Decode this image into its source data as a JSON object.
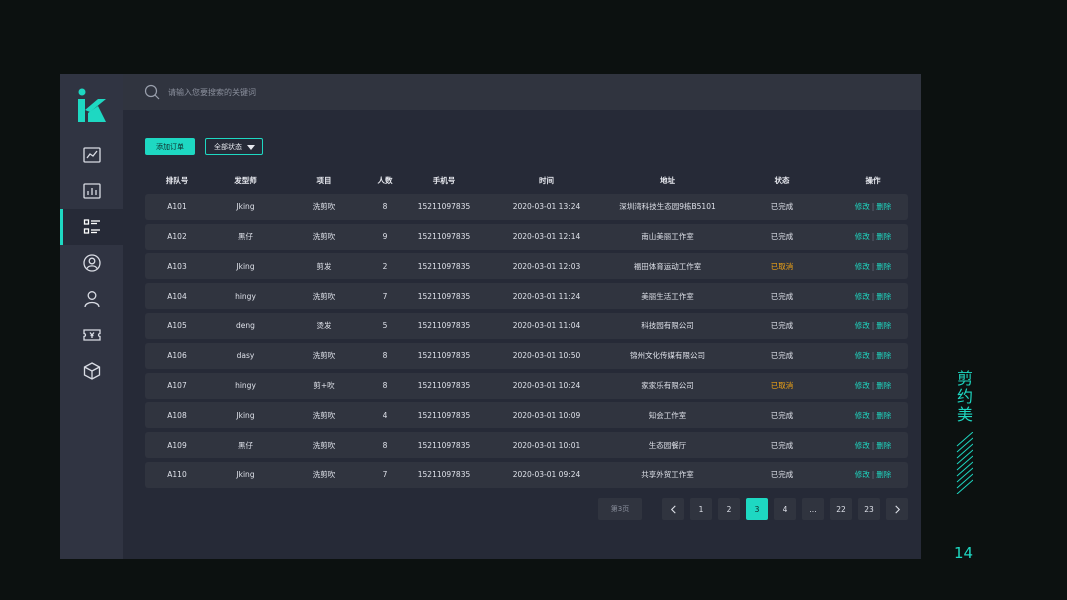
{
  "search": {
    "placeholder": "请输入您要搜索的关键词"
  },
  "toolbar": {
    "add_label": "添加订单",
    "status_filter": "全部状态"
  },
  "table": {
    "headers": [
      "排队号",
      "发型师",
      "项目",
      "人数",
      "手机号",
      "时间",
      "地址",
      "状态",
      "操作"
    ],
    "edit_label": "修改",
    "delete_label": "删除",
    "rows": [
      {
        "id": "A101",
        "stylist": "Jking",
        "service": "洗剪吹",
        "count": "8",
        "phone": "15211097835",
        "time": "2020-03-01 13:24",
        "address": "深圳湾科技生态园9栋B5101",
        "status": "已完成",
        "cancelled": false
      },
      {
        "id": "A102",
        "stylist": "黑仔",
        "service": "洗剪吹",
        "count": "9",
        "phone": "15211097835",
        "time": "2020-03-01 12:14",
        "address": "南山美丽工作室",
        "status": "已完成",
        "cancelled": false
      },
      {
        "id": "A103",
        "stylist": "Jking",
        "service": "剪发",
        "count": "2",
        "phone": "15211097835",
        "time": "2020-03-01 12:03",
        "address": "福田体育运动工作室",
        "status": "已取消",
        "cancelled": true
      },
      {
        "id": "A104",
        "stylist": "hingy",
        "service": "洗剪吹",
        "count": "7",
        "phone": "15211097835",
        "time": "2020-03-01 11:24",
        "address": "美丽生活工作室",
        "status": "已完成",
        "cancelled": false
      },
      {
        "id": "A105",
        "stylist": "deng",
        "service": "烫发",
        "count": "5",
        "phone": "15211097835",
        "time": "2020-03-01 11:04",
        "address": "科技园有限公司",
        "status": "已完成",
        "cancelled": false
      },
      {
        "id": "A106",
        "stylist": "dasy",
        "service": "洗剪吹",
        "count": "8",
        "phone": "15211097835",
        "time": "2020-03-01 10:50",
        "address": "锦州文化传媒有限公司",
        "status": "已完成",
        "cancelled": false
      },
      {
        "id": "A107",
        "stylist": "hingy",
        "service": "剪+吹",
        "count": "8",
        "phone": "15211097835",
        "time": "2020-03-01 10:24",
        "address": "家家乐有限公司",
        "status": "已取消",
        "cancelled": true
      },
      {
        "id": "A108",
        "stylist": "Jking",
        "service": "洗剪吹",
        "count": "4",
        "phone": "15211097835",
        "time": "2020-03-01 10:09",
        "address": "知会工作室",
        "status": "已完成",
        "cancelled": false
      },
      {
        "id": "A109",
        "stylist": "黑仔",
        "service": "洗剪吹",
        "count": "8",
        "phone": "15211097835",
        "time": "2020-03-01 10:01",
        "address": "生态园餐厅",
        "status": "已完成",
        "cancelled": false
      },
      {
        "id": "A110",
        "stylist": "Jking",
        "service": "洗剪吹",
        "count": "7",
        "phone": "15211097835",
        "time": "2020-03-01 09:24",
        "address": "共享外贸工作室",
        "status": "已完成",
        "cancelled": false
      }
    ]
  },
  "pagination": {
    "page_label": "第3页",
    "pages": [
      "1",
      "2",
      "3",
      "4",
      "...",
      "22",
      "23"
    ],
    "current": "3"
  },
  "brand": {
    "name": "剪约美",
    "page_number": "14"
  },
  "colors": {
    "accent": "#1ed8c2",
    "cancelled": "#f2a414",
    "panel": "#262a37",
    "sidebar": "#303442"
  },
  "icons": {
    "sidebar": [
      "line-chart-icon",
      "bar-chart-icon",
      "list-icon",
      "user-circle-icon",
      "user-icon",
      "ticket-icon",
      "cube-icon"
    ],
    "active_index": 2
  }
}
